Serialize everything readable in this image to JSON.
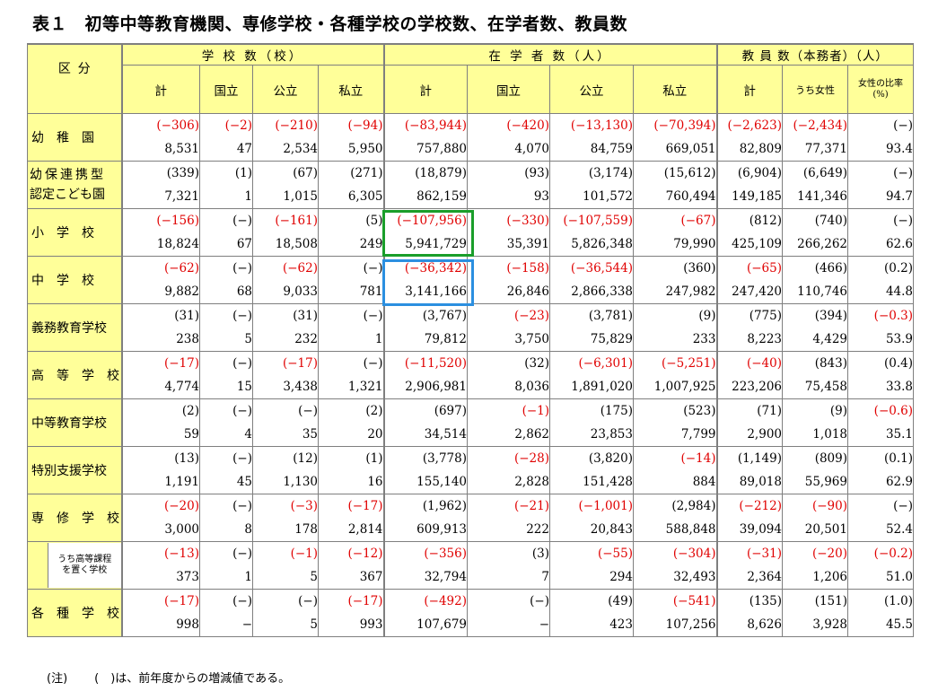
{
  "title": "表１　初等中等教育機関、専修学校・各種学校の学校数、在学者数、教員数",
  "header": {
    "kubun": [
      "区",
      "分"
    ],
    "groups": {
      "schools": "学 校 数（校）",
      "students": "在 学 者 数（人）",
      "teachers": "教 員 数（本務者）（人）"
    },
    "cols": {
      "total": "計",
      "national": "国立",
      "public": "公立",
      "private": "私立",
      "female": "うち女性",
      "female_ratio": "女性の比率(%)"
    }
  },
  "rows": [
    {
      "label": "幼　稚　園",
      "diff": [
        "(−306)",
        "(−2)",
        "(−210)",
        "(−94)",
        "(−83,944)",
        "(−420)",
        "(−13,130)",
        "(−70,394)",
        "(−2,623)",
        "(−2,434)",
        "(−)"
      ],
      "red": [
        true,
        true,
        true,
        true,
        true,
        true,
        true,
        true,
        true,
        true,
        false
      ],
      "vals": [
        "8,531",
        "47",
        "2,534",
        "5,950",
        "757,880",
        "4,070",
        "84,759",
        "669,051",
        "82,809",
        "77,371",
        "93.4"
      ]
    },
    {
      "label": "幼保連携型認定こども園",
      "label_line1": "幼保連携型",
      "label_line2": "認定こども園",
      "diff": [
        "(339)",
        "(1)",
        "(67)",
        "(271)",
        "(18,879)",
        "(93)",
        "(3,174)",
        "(15,612)",
        "(6,904)",
        "(6,649)",
        "(−)"
      ],
      "red": [
        false,
        false,
        false,
        false,
        false,
        false,
        false,
        false,
        false,
        false,
        false
      ],
      "vals": [
        "7,321",
        "1",
        "1,015",
        "6,305",
        "862,159",
        "93",
        "101,572",
        "760,494",
        "149,185",
        "141,346",
        "94.7"
      ]
    },
    {
      "label": "小　学　校",
      "diff": [
        "(−156)",
        "(−)",
        "(−161)",
        "(5)",
        "(−107,956)",
        "(−330)",
        "(−107,559)",
        "(−67)",
        "(812)",
        "(740)",
        "(−)"
      ],
      "red": [
        true,
        false,
        true,
        false,
        true,
        true,
        true,
        true,
        false,
        false,
        false
      ],
      "vals": [
        "18,824",
        "67",
        "18,508",
        "249",
        "5,941,729",
        "35,391",
        "5,826,348",
        "79,990",
        "425,109",
        "266,262",
        "62.6"
      ]
    },
    {
      "label": "中　学　校",
      "diff": [
        "(−62)",
        "(−)",
        "(−62)",
        "(−)",
        "(−36,342)",
        "(−158)",
        "(−36,544)",
        "(360)",
        "(−65)",
        "(466)",
        "(0.2)"
      ],
      "red": [
        true,
        false,
        true,
        false,
        true,
        true,
        true,
        false,
        true,
        false,
        false
      ],
      "vals": [
        "9,882",
        "68",
        "9,033",
        "781",
        "3,141,166",
        "26,846",
        "2,866,338",
        "247,982",
        "247,420",
        "110,746",
        "44.8"
      ]
    },
    {
      "label": "義務教育学校",
      "diff": [
        "(31)",
        "(−)",
        "(31)",
        "(−)",
        "(3,767)",
        "(−23)",
        "(3,781)",
        "(9)",
        "(775)",
        "(394)",
        "(−0.3)"
      ],
      "red": [
        false,
        false,
        false,
        false,
        false,
        true,
        false,
        false,
        false,
        false,
        true
      ],
      "vals": [
        "238",
        "5",
        "232",
        "1",
        "79,812",
        "3,750",
        "75,829",
        "233",
        "8,223",
        "4,429",
        "53.9"
      ]
    },
    {
      "label": "高　等　学　校",
      "diff": [
        "(−17)",
        "(−)",
        "(−17)",
        "(−)",
        "(−11,520)",
        "(32)",
        "(−6,301)",
        "(−5,251)",
        "(−40)",
        "(843)",
        "(0.4)"
      ],
      "red": [
        true,
        false,
        true,
        false,
        true,
        false,
        true,
        true,
        true,
        false,
        false
      ],
      "vals": [
        "4,774",
        "15",
        "3,438",
        "1,321",
        "2,906,981",
        "8,036",
        "1,891,020",
        "1,007,925",
        "223,206",
        "75,458",
        "33.8"
      ]
    },
    {
      "label": "中等教育学校",
      "diff": [
        "(2)",
        "(−)",
        "(−)",
        "(2)",
        "(697)",
        "(−1)",
        "(175)",
        "(523)",
        "(71)",
        "(9)",
        "(−0.6)"
      ],
      "red": [
        false,
        false,
        false,
        false,
        false,
        true,
        false,
        false,
        false,
        false,
        true
      ],
      "vals": [
        "59",
        "4",
        "35",
        "20",
        "34,514",
        "2,862",
        "23,853",
        "7,799",
        "2,900",
        "1,018",
        "35.1"
      ]
    },
    {
      "label": "特別支援学校",
      "diff": [
        "(13)",
        "(−)",
        "(12)",
        "(1)",
        "(3,778)",
        "(−28)",
        "(3,820)",
        "(−14)",
        "(1,149)",
        "(809)",
        "(0.1)"
      ],
      "red": [
        false,
        false,
        false,
        false,
        false,
        true,
        false,
        true,
        false,
        false,
        false
      ],
      "vals": [
        "1,191",
        "45",
        "1,130",
        "16",
        "155,140",
        "2,828",
        "151,428",
        "884",
        "89,018",
        "55,969",
        "62.9"
      ]
    },
    {
      "label": "専　修　学　校",
      "diff": [
        "(−20)",
        "(−)",
        "(−3)",
        "(−17)",
        "(1,962)",
        "(−21)",
        "(−1,001)",
        "(2,984)",
        "(−212)",
        "(−90)",
        "(−)"
      ],
      "red": [
        true,
        false,
        true,
        true,
        false,
        true,
        true,
        false,
        true,
        true,
        false
      ],
      "vals": [
        "3,000",
        "8",
        "178",
        "2,814",
        "609,913",
        "222",
        "20,843",
        "588,848",
        "39,094",
        "20,501",
        "52.4"
      ]
    },
    {
      "label": "うち高等課程を置く学校",
      "label_line1": "うち高等課程",
      "label_line2": "を置く学校",
      "diff": [
        "(−13)",
        "(−)",
        "(−1)",
        "(−12)",
        "(−356)",
        "(3)",
        "(−55)",
        "(−304)",
        "(−31)",
        "(−20)",
        "(−0.2)"
      ],
      "red": [
        true,
        false,
        true,
        true,
        true,
        false,
        true,
        true,
        true,
        true,
        true
      ],
      "vals": [
        "373",
        "1",
        "5",
        "367",
        "32,794",
        "7",
        "294",
        "32,493",
        "2,364",
        "1,206",
        "51.0"
      ]
    },
    {
      "label": "各　種　学　校",
      "diff": [
        "(−17)",
        "(−)",
        "(−)",
        "(−17)",
        "(−492)",
        "(−)",
        "(49)",
        "(−541)",
        "(135)",
        "(151)",
        "(1.0)"
      ],
      "red": [
        true,
        false,
        false,
        true,
        true,
        false,
        false,
        true,
        false,
        false,
        false
      ],
      "vals": [
        "998",
        "−",
        "5",
        "993",
        "107,679",
        "−",
        "423",
        "107,256",
        "8,626",
        "3,928",
        "45.5"
      ]
    }
  ],
  "note": {
    "label": "(注)",
    "text": "(　)は、前年度からの増減値である。"
  },
  "colors": {
    "header_bg": "#ffff99",
    "negative": "#e00000",
    "highlight_green": "#1a9e2a",
    "highlight_blue": "#2b8fe0"
  }
}
